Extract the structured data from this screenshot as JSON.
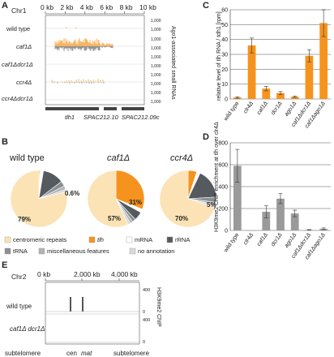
{
  "panels": {
    "A": {
      "letter": "A",
      "chr": "Chr1",
      "scale": [
        "0 kb",
        "2 kb",
        "4 kb",
        "6 kb",
        "8 kb",
        "10 kb"
      ],
      "rows": [
        {
          "label": "wild type",
          "ymax": "1,000",
          "ymin": "1,000"
        },
        {
          "label": "caf1Δ",
          "ymax": "1,000",
          "ymin": "1,000"
        },
        {
          "label": "caf1Δdcr1Δ",
          "ymax": "1,000",
          "ymin": "1,000"
        },
        {
          "label": "ccr4Δ",
          "ymax": "1,000",
          "ymin": "1,000"
        },
        {
          "label": "ccr4Δdcr1Δ",
          "ymax": "1,000",
          "ymin": "1,000"
        }
      ],
      "ylabel": "Ago1-associated small RNAs",
      "genes": [
        "tlh1",
        "SPAC212.10",
        "SPAC212.09c"
      ]
    },
    "B": {
      "letter": "B",
      "pies": [
        {
          "title": "wild type",
          "main_pct": "79%",
          "other_pct": "0.6%"
        },
        {
          "title": "caf1Δ",
          "main_pct": "57%",
          "other_pct": "31%"
        },
        {
          "title": "ccr4Δ",
          "main_pct": "70%",
          "other_pct": "5%"
        }
      ],
      "legend": [
        {
          "label": "centromeric repeats",
          "color": "#fbe3b5"
        },
        {
          "label": "tlh",
          "color": "#f5931e"
        },
        {
          "label": "mRNA",
          "color": "#ffffff"
        },
        {
          "label": "rRNA",
          "color": "#555a5f"
        },
        {
          "label": "tRNA",
          "color": "#8a8f94"
        },
        {
          "label": "miscellaneous features",
          "color": "#b0b3b6"
        },
        {
          "label": "no annotation",
          "color": "#d9d9d9"
        }
      ]
    },
    "C": {
      "letter": "C",
      "ylabel": "relative level of tlh RNA / tdh1 [rpm]",
      "yticks": [
        "0",
        "10",
        "20",
        "30",
        "40",
        "50",
        "60"
      ]
    },
    "D": {
      "letter": "D",
      "ylabel": "H3K9me2 ChIP enrichment at tlh over clr4Δ",
      "yticks": [
        "0",
        "200",
        "400",
        "600",
        "800"
      ]
    },
    "E": {
      "letter": "E",
      "chr": "Chr2",
      "scale": [
        "0 kb",
        "2,000 kb",
        "4,000 kb"
      ],
      "rows": [
        {
          "label": "wild type",
          "ymax": "400",
          "ymin": "0"
        },
        {
          "label": "caf1Δ dcr1Δ",
          "ymax": "400",
          "ymin": "0"
        }
      ],
      "ylabel": "H3K9me2 ChIP",
      "bottom": [
        "subtelomere",
        "cen",
        "mat",
        "subtelomere"
      ]
    }
  },
  "chart_data": [
    {
      "type": "bar",
      "panel": "C",
      "categories": [
        "wild type",
        "clr4Δ",
        "caf1Δ",
        "dcr1Δ",
        "ago1Δ",
        "caf1Δdcr1Δ",
        "caf1Δago1Δ"
      ],
      "values": [
        1,
        36,
        7,
        4,
        1.5,
        29,
        51
      ],
      "errors": [
        0.5,
        5,
        1.5,
        1,
        0.5,
        4,
        9
      ],
      "ylabel": "relative level of tlh RNA / tdh1 [rpm]",
      "ylim": [
        0,
        60
      ],
      "color": "#f5931e"
    },
    {
      "type": "bar",
      "panel": "D",
      "categories": [
        "wild type",
        "clr4Δ",
        "caf1Δ",
        "dcr1Δ",
        "ago1Δ",
        "caf1Δdcr1Δ",
        "caf1Δago1Δ"
      ],
      "values": [
        590,
        0,
        170,
        290,
        155,
        5,
        15
      ],
      "errors": [
        150,
        0,
        55,
        45,
        30,
        3,
        8
      ],
      "ylabel": "H3K9me2 ChIP enrichment at tlh over clr4Δ",
      "ylim": [
        0,
        800
      ],
      "color": "#9a9a9a"
    }
  ]
}
